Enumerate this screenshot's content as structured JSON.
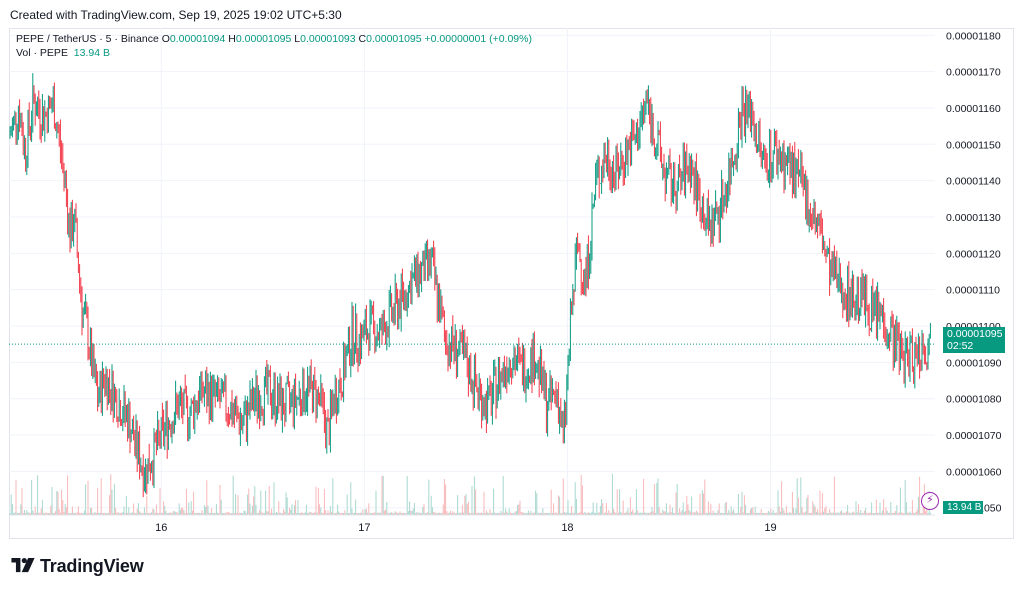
{
  "header": {
    "created": "Created with TradingView.com, Sep 19, 2025 19:02 UTC+5:30"
  },
  "legend": {
    "symbol": "PEPE / TetherUS · 5 · Binance",
    "o_label": "O",
    "o_value": "0.00001094",
    "h_label": "H",
    "h_value": "0.00001095",
    "l_label": "L",
    "l_value": "0.00001093",
    "c_label": "C",
    "c_value": "0.00001095",
    "change": "+0.00000001 (+0.09%)",
    "vol_label": "Vol · PEPE",
    "vol_value": "13.94 B"
  },
  "price_badge": {
    "price": "0.00001095",
    "countdown": "02:52"
  },
  "volume_badge": "13.94 B",
  "brand": {
    "name": "TradingView"
  },
  "colors": {
    "up": "#089981",
    "down": "#f23645",
    "up_vol": "#a8d8cf",
    "down_vol": "#f7b7ba",
    "grid": "#f0f3fa",
    "axis_text": "#131722"
  },
  "icons": {
    "lightning": "lightning-icon",
    "logo": "tradingview-logo-icon"
  },
  "chart_data": {
    "type": "candlestick",
    "interval": "5",
    "yticks": [
      "0.00001180",
      "0.00001170",
      "0.00001160",
      "0.00001150",
      "0.00001140",
      "0.00001130",
      "0.00001120",
      "0.00001110",
      "0.00001100",
      "0.00001090",
      "0.00001080",
      "0.00001070",
      "0.00001060",
      "0.00001050"
    ],
    "ylim": [
      1.048e-05,
      1.182e-05
    ],
    "xticks": [
      "16",
      "17",
      "18",
      "19"
    ],
    "xlim": [
      15.25,
      19.81
    ],
    "last_price": 1.095e-05,
    "grid": true,
    "close_path": [
      [
        15.25,
        1.152e-05
      ],
      [
        15.3,
        1.16e-05
      ],
      [
        15.33,
        1.148e-05
      ],
      [
        15.37,
        1.162e-05
      ],
      [
        15.42,
        1.158e-05
      ],
      [
        15.47,
        1.161e-05
      ],
      [
        15.5,
        1.15e-05
      ],
      [
        15.53,
        1.138e-05
      ],
      [
        15.55,
        1.125e-05
      ],
      [
        15.57,
        1.13e-05
      ],
      [
        15.59,
        1.118e-05
      ],
      [
        15.61,
        1.105e-05
      ],
      [
        15.64,
        1.097e-05
      ],
      [
        15.66,
        1.088e-05
      ],
      [
        15.69,
        1.08e-05
      ],
      [
        15.72,
        1.086e-05
      ],
      [
        15.76,
        1.082e-05
      ],
      [
        15.8,
        1.078e-05
      ],
      [
        15.84,
        1.074e-05
      ],
      [
        15.88,
        1.066e-05
      ],
      [
        15.92,
        1.06e-05
      ],
      [
        15.97,
        1.066e-05
      ],
      [
        16.02,
        1.072e-05
      ],
      [
        16.08,
        1.078e-05
      ],
      [
        16.14,
        1.076e-05
      ],
      [
        16.2,
        1.082e-05
      ],
      [
        16.27,
        1.08e-05
      ],
      [
        16.33,
        1.078e-05
      ],
      [
        16.4,
        1.073e-05
      ],
      [
        16.46,
        1.08e-05
      ],
      [
        16.53,
        1.082e-05
      ],
      [
        16.6,
        1.078e-05
      ],
      [
        16.66,
        1.08e-05
      ],
      [
        16.72,
        1.083e-05
      ],
      [
        16.78,
        1.08e-05
      ],
      [
        16.82,
        1.07e-05
      ],
      [
        16.85,
        1.08e-05
      ],
      [
        16.89,
        1.086e-05
      ],
      [
        16.94,
        1.098e-05
      ],
      [
        16.98,
        1.096e-05
      ],
      [
        17.03,
        1.1e-05
      ],
      [
        17.08,
        1.098e-05
      ],
      [
        17.13,
        1.103e-05
      ],
      [
        17.18,
        1.107e-05
      ],
      [
        17.23,
        1.112e-05
      ],
      [
        17.28,
        1.115e-05
      ],
      [
        17.33,
        1.117e-05
      ],
      [
        17.36,
        1.108e-05
      ],
      [
        17.4,
        1.096e-05
      ],
      [
        17.45,
        1.094e-05
      ],
      [
        17.5,
        1.09e-05
      ],
      [
        17.56,
        1.082e-05
      ],
      [
        17.61,
        1.078e-05
      ],
      [
        17.66,
        1.085e-05
      ],
      [
        17.72,
        1.092e-05
      ],
      [
        17.78,
        1.088e-05
      ],
      [
        17.84,
        1.092e-05
      ],
      [
        17.9,
        1.078e-05
      ],
      [
        17.95,
        1.082e-05
      ],
      [
        17.98,
        1.068e-05
      ],
      [
        18.02,
        1.104e-05
      ],
      [
        18.05,
        1.122e-05
      ],
      [
        18.09,
        1.112e-05
      ],
      [
        18.14,
        1.14e-05
      ],
      [
        18.19,
        1.147e-05
      ],
      [
        18.24,
        1.142e-05
      ],
      [
        18.29,
        1.148e-05
      ],
      [
        18.34,
        1.152e-05
      ],
      [
        18.39,
        1.162e-05
      ],
      [
        18.44,
        1.15e-05
      ],
      [
        18.49,
        1.14e-05
      ],
      [
        18.54,
        1.138e-05
      ],
      [
        18.6,
        1.145e-05
      ],
      [
        18.65,
        1.135e-05
      ],
      [
        18.7,
        1.127e-05
      ],
      [
        18.76,
        1.134e-05
      ],
      [
        18.81,
        1.145e-05
      ],
      [
        18.86,
        1.16e-05
      ],
      [
        18.91,
        1.158e-05
      ],
      [
        18.96,
        1.145e-05
      ],
      [
        19.02,
        1.148e-05
      ],
      [
        19.08,
        1.145e-05
      ],
      [
        19.14,
        1.14e-05
      ],
      [
        19.2,
        1.132e-05
      ],
      [
        19.25,
        1.125e-05
      ],
      [
        19.29,
        1.115e-05
      ],
      [
        19.34,
        1.112e-05
      ],
      [
        19.39,
        1.108e-05
      ],
      [
        19.45,
        1.108e-05
      ],
      [
        19.5,
        1.104e-05
      ],
      [
        19.55,
        1.103e-05
      ],
      [
        19.6,
        1.097e-05
      ],
      [
        19.65,
        1.092e-05
      ],
      [
        19.7,
        1.092e-05
      ],
      [
        19.76,
        1.095e-05
      ]
    ]
  }
}
